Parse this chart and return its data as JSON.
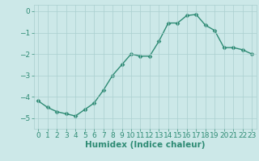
{
  "title": "",
  "xlabel": "Humidex (Indice chaleur)",
  "x": [
    0,
    1,
    2,
    3,
    4,
    5,
    6,
    7,
    8,
    9,
    10,
    11,
    12,
    13,
    14,
    15,
    16,
    17,
    18,
    19,
    20,
    21,
    22,
    23
  ],
  "y": [
    -4.2,
    -4.5,
    -4.7,
    -4.8,
    -4.9,
    -4.6,
    -4.3,
    -3.7,
    -3.0,
    -2.5,
    -2.0,
    -2.1,
    -2.1,
    -1.4,
    -0.55,
    -0.55,
    -0.2,
    -0.15,
    -0.65,
    -0.9,
    -1.7,
    -1.7,
    -1.8,
    -2.0
  ],
  "line_color": "#2e8b74",
  "marker": "D",
  "marker_size": 2.5,
  "background_color": "#cce8e8",
  "grid_color": "#aacfcf",
  "ylim": [
    -5.5,
    0.3
  ],
  "xlim": [
    -0.5,
    23.5
  ],
  "yticks": [
    0,
    -1,
    -2,
    -3,
    -4,
    -5
  ],
  "xticks": [
    0,
    1,
    2,
    3,
    4,
    5,
    6,
    7,
    8,
    9,
    10,
    11,
    12,
    13,
    14,
    15,
    16,
    17,
    18,
    19,
    20,
    21,
    22,
    23
  ],
  "tick_fontsize": 6.5,
  "xlabel_fontsize": 7.5,
  "tick_color": "#2e8b74",
  "linewidth": 1.0
}
